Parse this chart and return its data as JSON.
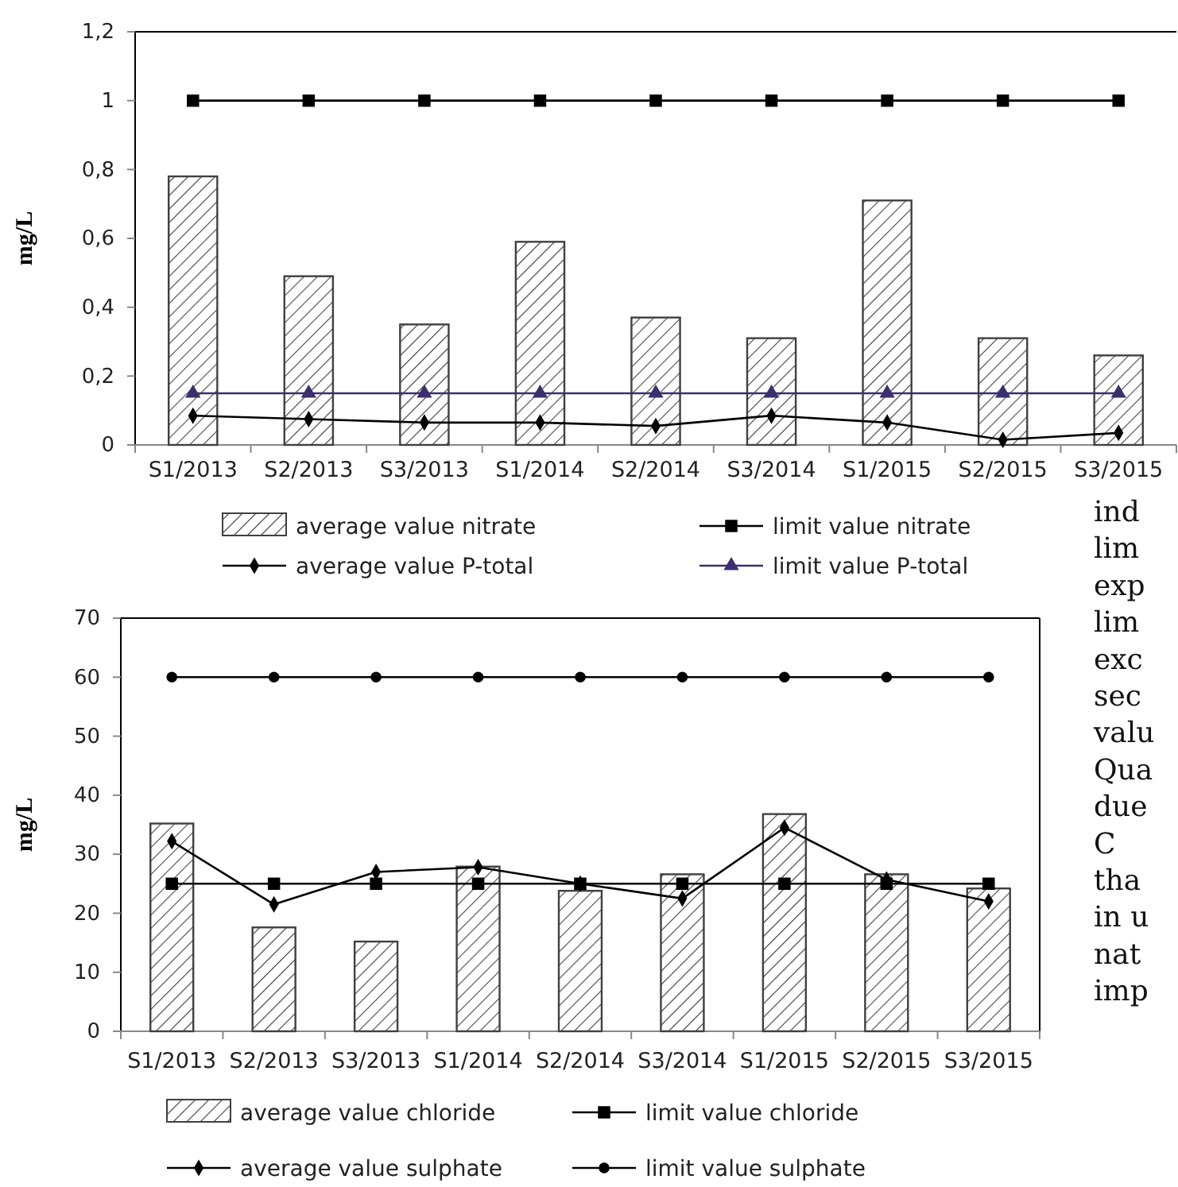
{
  "chart_data": [
    {
      "type": "bar",
      "ylabel": "mg/L",
      "categories": [
        "S1/2013",
        "S2/2013",
        "S3/2013",
        "S1/2014",
        "S2/2014",
        "S3/2014",
        "S1/2015",
        "S2/2015",
        "S3/2015"
      ],
      "series": [
        {
          "name": "average value nitrate",
          "type": "bar",
          "color": "#404040",
          "values": [
            0.78,
            0.49,
            0.35,
            0.59,
            0.37,
            0.31,
            0.71,
            0.31,
            0.26
          ]
        },
        {
          "name": "limit value nitrate",
          "type": "line",
          "marker": "square",
          "color": "#000000",
          "values": [
            1,
            1,
            1,
            1,
            1,
            1,
            1,
            1,
            1
          ]
        },
        {
          "name": "average value P-total",
          "type": "line",
          "marker": "diamond",
          "color": "#000000",
          "values": [
            0.085,
            0.075,
            0.065,
            0.065,
            0.055,
            0.085,
            0.065,
            0.015,
            0.035
          ]
        },
        {
          "name": "limit value P-total",
          "type": "line",
          "marker": "triangle",
          "color": "#3b2f6e",
          "values": [
            0.15,
            0.15,
            0.15,
            0.15,
            0.15,
            0.15,
            0.15,
            0.15,
            0.15
          ]
        }
      ],
      "ylim": [
        0,
        1.2
      ],
      "yticks": [
        0,
        {
          "value": 0.2,
          "label": "0,2"
        },
        {
          "value": 0.4,
          "label": "0,4"
        },
        {
          "value": 0.6,
          "label": "0,6"
        },
        {
          "value": 0.8,
          "label": "0,8"
        },
        1,
        {
          "value": 1.2,
          "label": "1,2"
        }
      ],
      "grid": false,
      "legend": "bottom",
      "line_style": "solid"
    },
    {
      "type": "bar",
      "ylabel": "mg/L",
      "categories": [
        "S1/2013",
        "S2/2013",
        "S3/2013",
        "S1/2014",
        "S2/2014",
        "S3/2014",
        "S1/2015",
        "S2/2015",
        "S3/2015"
      ],
      "series": [
        {
          "name": "average value chloride",
          "type": "bar",
          "color": "#404040",
          "values": [
            35.2,
            17.6,
            15.2,
            27.9,
            23.8,
            26.6,
            36.8,
            26.6,
            24.2
          ]
        },
        {
          "name": "limit value chloride",
          "type": "line",
          "marker": "square",
          "color": "#000000",
          "values": [
            25,
            25,
            25,
            25,
            25,
            25,
            25,
            25,
            25
          ]
        },
        {
          "name": "average value sulphate",
          "type": "line",
          "marker": "diamond",
          "color": "#000000",
          "values": [
            32.2,
            21.5,
            27,
            27.8,
            25,
            22.5,
            34.5,
            25.7,
            22
          ]
        },
        {
          "name": "limit value sulphate",
          "type": "line",
          "marker": "circle",
          "color": "#000000",
          "values": [
            60,
            60,
            60,
            60,
            60,
            60,
            60,
            60,
            60
          ]
        }
      ],
      "ylim": [
        0,
        70
      ],
      "yticks": [
        0,
        10,
        20,
        30,
        40,
        50,
        60,
        70
      ],
      "grid": false,
      "legend": "bottom",
      "line_style": "solid"
    },
    {
      "type": "other",
      "annotations": [
        "ind",
        "lim",
        "exp",
        "lim",
        "exc",
        "sec",
        "valu",
        "Qua",
        "due",
        "C",
        "tha",
        "in u",
        "nat",
        "imp"
      ]
    }
  ]
}
